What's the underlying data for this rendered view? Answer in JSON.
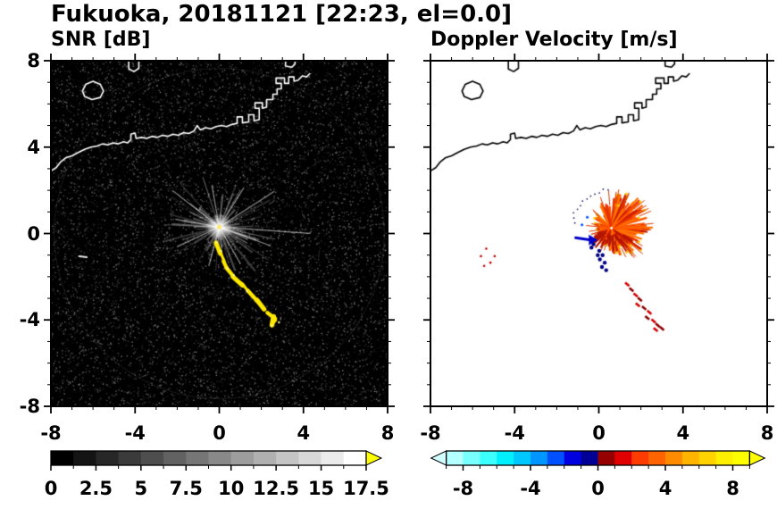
{
  "figure": {
    "title": "Fukuoka, 20181121 [22:23, el=0.0]"
  },
  "panels": {
    "snr": {
      "title": "SNR [dB]",
      "x_tick_labels": [
        "-8",
        "-4",
        "0",
        "4",
        "8"
      ],
      "y_tick_labels": [
        "8",
        "4",
        "0",
        "-4",
        "-8"
      ],
      "colorbar": {
        "tick_labels": [
          "0",
          "2.5",
          "5",
          "7.5",
          "10",
          "12.5",
          "15",
          "17.5"
        ],
        "min": 0,
        "max": 17.5,
        "colors": [
          "#000000",
          "#141414",
          "#272727",
          "#3b3b3b",
          "#4e4e4e",
          "#626262",
          "#767676",
          "#898989",
          "#9d9d9d",
          "#b0b0b0",
          "#c4c4c4",
          "#d8d8d8",
          "#ebebeb",
          "#ffffff"
        ],
        "over_color": "#ffff00"
      }
    },
    "velocity": {
      "title": "Doppler Velocity [m/s]",
      "x_tick_labels": [
        "-8",
        "-4",
        "0",
        "4",
        "8"
      ],
      "colorbar": {
        "tick_labels": [
          "-8",
          "-4",
          "0",
          "4",
          "8"
        ],
        "min": -9,
        "max": 9,
        "colors": [
          "#b4ffff",
          "#78ffff",
          "#3cffff",
          "#00f0ff",
          "#00c8ff",
          "#0096ff",
          "#0050ff",
          "#0000e1",
          "#000096",
          "#960000",
          "#e10000",
          "#ff3c00",
          "#ff6400",
          "#ff8c00",
          "#ffb400",
          "#ffd200",
          "#fff000",
          "#ffff00"
        ],
        "under_color": "#d2ffff",
        "over_color": "#ffff00"
      }
    }
  },
  "chart_data": [
    {
      "type": "heatmap",
      "title": "SNR [dB]",
      "xlim": [
        -8,
        8
      ],
      "ylim": [
        -8,
        8
      ],
      "x_ticks": [
        -8,
        -4,
        0,
        4,
        8
      ],
      "y_ticks": [
        -8,
        -4,
        0,
        4,
        8
      ],
      "colorbar": {
        "range": [
          0,
          17.5
        ],
        "step": 1.25,
        "palette": "grayscale-black-to-white",
        "over": "#ffff00",
        "labels": [
          0,
          2.5,
          5,
          7.5,
          10,
          12.5,
          15,
          17.5
        ]
      },
      "background": "dark-speckle-noise",
      "radar_center": [
        0,
        0.3
      ],
      "clutter_rays": [
        [
          -4,
          4.3
        ],
        [
          33,
          3.1
        ],
        [
          58,
          2.2
        ],
        [
          100,
          2.0
        ],
        [
          142,
          2.8
        ],
        [
          170,
          2.1
        ],
        [
          205,
          2.2
        ],
        [
          255,
          1.9
        ],
        [
          300,
          2.0
        ],
        [
          340,
          2.6
        ]
      ],
      "echo_track": [
        [
          -0.1,
          -0.45
        ],
        [
          0.05,
          -0.9
        ],
        [
          0.2,
          -1.3
        ],
        [
          0.4,
          -1.6
        ],
        [
          0.7,
          -2.0
        ],
        [
          1.05,
          -2.35
        ],
        [
          1.4,
          -2.7
        ],
        [
          1.8,
          -3.1
        ],
        [
          2.1,
          -3.5
        ],
        [
          2.3,
          -3.7
        ],
        [
          2.6,
          -3.9
        ],
        [
          2.5,
          -4.2
        ],
        [
          2.75,
          -4.05
        ]
      ],
      "isolated_echo": [
        [
          -6.65,
          -1.05
        ],
        [
          -6.3,
          -1.1
        ]
      ]
    },
    {
      "type": "heatmap",
      "title": "Doppler Velocity [m/s]",
      "xlim": [
        -8,
        8
      ],
      "ylim": [
        -8,
        8
      ],
      "x_ticks": [
        -8,
        -4,
        0,
        4,
        8
      ],
      "y_ticks": [
        -8,
        -4,
        0,
        4,
        8
      ],
      "colorbar": {
        "range": [
          -9,
          9
        ],
        "step": 1,
        "palette": "cyan-blue-navy-maroon-red-orange-yellow",
        "labels": [
          -8,
          -4,
          0,
          4,
          8
        ]
      },
      "echo_center": [
        0.6,
        0.25
      ],
      "echo_radius_east": 1.6,
      "echo_radius_west": 0.6,
      "inbound_arrow": {
        "from": [
          -1.1,
          -0.2
        ],
        "to": [
          -0.05,
          -0.3
        ],
        "color": "#0000c8"
      },
      "negative_dots": [
        [
          0.02,
          -0.8
        ],
        [
          0.18,
          -1.0
        ],
        [
          0.05,
          -1.2
        ],
        [
          0.28,
          -1.35
        ],
        [
          0.15,
          -1.55
        ],
        [
          0.35,
          -1.7
        ],
        [
          -0.05,
          -1.0
        ],
        [
          -0.35,
          -0.65
        ],
        [
          -0.25,
          -0.5
        ]
      ],
      "upper_blue_specks": [
        [
          -0.55,
          0.75
        ],
        [
          -0.8,
          0.4
        ]
      ],
      "echo_trail": [
        [
          1.35,
          -2.35
        ],
        [
          1.55,
          -2.6
        ],
        [
          1.75,
          -2.85
        ],
        [
          1.95,
          -3.05
        ],
        [
          1.85,
          -3.3
        ],
        [
          2.15,
          -3.45
        ],
        [
          2.4,
          -3.65
        ],
        [
          2.3,
          -3.9
        ],
        [
          2.6,
          -4.05
        ],
        [
          2.8,
          -4.25
        ],
        [
          2.7,
          -4.45
        ],
        [
          3.0,
          -4.4
        ]
      ],
      "west_specks": [
        [
          -5.35,
          -0.7
        ],
        [
          -5.6,
          -1.05
        ],
        [
          -5.15,
          -1.35
        ],
        [
          -4.95,
          -1.05
        ],
        [
          -5.45,
          -1.5
        ]
      ]
    }
  ],
  "coastline": [
    [
      [
        -8.0,
        2.9
      ],
      [
        -7.75,
        3.05
      ],
      [
        -7.55,
        3.3
      ],
      [
        -7.3,
        3.5
      ],
      [
        -7.0,
        3.6
      ],
      [
        -6.7,
        3.75
      ],
      [
        -6.4,
        3.9
      ],
      [
        -6.1,
        4.0
      ],
      [
        -5.8,
        4.05
      ],
      [
        -5.55,
        4.15
      ],
      [
        -5.3,
        4.1
      ],
      [
        -5.05,
        4.2
      ],
      [
        -4.8,
        4.15
      ],
      [
        -4.55,
        4.25
      ],
      [
        -4.35,
        4.2
      ],
      [
        -4.2,
        4.35
      ],
      [
        -4.2,
        4.6
      ],
      [
        -4.0,
        4.65
      ],
      [
        -3.95,
        4.4
      ],
      [
        -3.7,
        4.45
      ],
      [
        -3.45,
        4.4
      ],
      [
        -3.2,
        4.5
      ],
      [
        -2.95,
        4.45
      ],
      [
        -2.7,
        4.55
      ],
      [
        -2.45,
        4.5
      ],
      [
        -2.2,
        4.6
      ],
      [
        -1.95,
        4.55
      ],
      [
        -1.7,
        4.67
      ],
      [
        -1.45,
        4.63
      ],
      [
        -1.2,
        4.75
      ],
      [
        -1.05,
        5.0
      ],
      [
        -0.9,
        4.8
      ],
      [
        -0.65,
        4.9
      ],
      [
        -0.4,
        4.85
      ],
      [
        -0.15,
        4.95
      ],
      [
        0.1,
        5.0
      ],
      [
        0.35,
        4.95
      ],
      [
        0.6,
        5.05
      ],
      [
        0.85,
        5.1
      ],
      [
        0.85,
        5.4
      ],
      [
        1.1,
        5.4
      ],
      [
        1.1,
        5.12
      ],
      [
        1.4,
        5.17
      ],
      [
        1.4,
        5.5
      ],
      [
        1.65,
        5.5
      ],
      [
        1.65,
        5.22
      ],
      [
        1.9,
        5.27
      ],
      [
        1.9,
        5.8
      ],
      [
        1.7,
        5.8
      ],
      [
        1.7,
        6.05
      ],
      [
        2.05,
        6.05
      ],
      [
        2.05,
        5.8
      ],
      [
        2.25,
        5.85
      ],
      [
        2.25,
        6.2
      ],
      [
        2.55,
        6.2
      ],
      [
        2.55,
        6.45
      ],
      [
        2.75,
        6.45
      ],
      [
        2.75,
        6.7
      ],
      [
        2.95,
        6.7
      ],
      [
        2.95,
        6.95
      ],
      [
        2.7,
        6.95
      ],
      [
        2.7,
        7.2
      ],
      [
        3.1,
        7.2
      ],
      [
        3.1,
        6.95
      ],
      [
        3.3,
        6.95
      ],
      [
        3.3,
        7.25
      ],
      [
        3.55,
        7.25
      ],
      [
        3.55,
        7.05
      ],
      [
        3.75,
        7.1
      ],
      [
        3.95,
        7.3
      ],
      [
        4.15,
        7.25
      ],
      [
        4.3,
        7.4
      ]
    ],
    [
      [
        -6.4,
        6.35
      ],
      [
        -6.05,
        6.2
      ],
      [
        -5.65,
        6.3
      ],
      [
        -5.5,
        6.6
      ],
      [
        -5.65,
        6.9
      ],
      [
        -6.0,
        7.05
      ],
      [
        -6.35,
        6.9
      ],
      [
        -6.5,
        6.6
      ],
      [
        -6.4,
        6.35
      ]
    ],
    [
      [
        -4.3,
        8.0
      ],
      [
        -4.3,
        7.62
      ],
      [
        -4.05,
        7.5
      ],
      [
        -3.82,
        7.65
      ],
      [
        -3.82,
        8.0
      ]
    ],
    [
      [
        3.15,
        8.0
      ],
      [
        3.15,
        7.75
      ],
      [
        3.45,
        7.7
      ],
      [
        3.6,
        7.85
      ],
      [
        3.6,
        8.0
      ]
    ]
  ]
}
